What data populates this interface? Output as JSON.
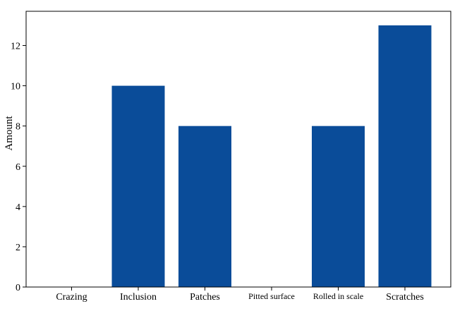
{
  "chart_data": {
    "type": "bar",
    "title": "",
    "xlabel": "",
    "ylabel": "Amount",
    "categories": [
      "Crazing",
      "Inclusion",
      "Patches",
      "Pitted surface",
      "Rolled in scale",
      "Scratches"
    ],
    "values": [
      0,
      10,
      8,
      0,
      8,
      13
    ],
    "ylim": [
      0,
      13.7
    ],
    "yticks": [
      0,
      2,
      4,
      6,
      8,
      10,
      12
    ],
    "bar_color": "#0a4c99",
    "grid": false,
    "legend": "none"
  }
}
